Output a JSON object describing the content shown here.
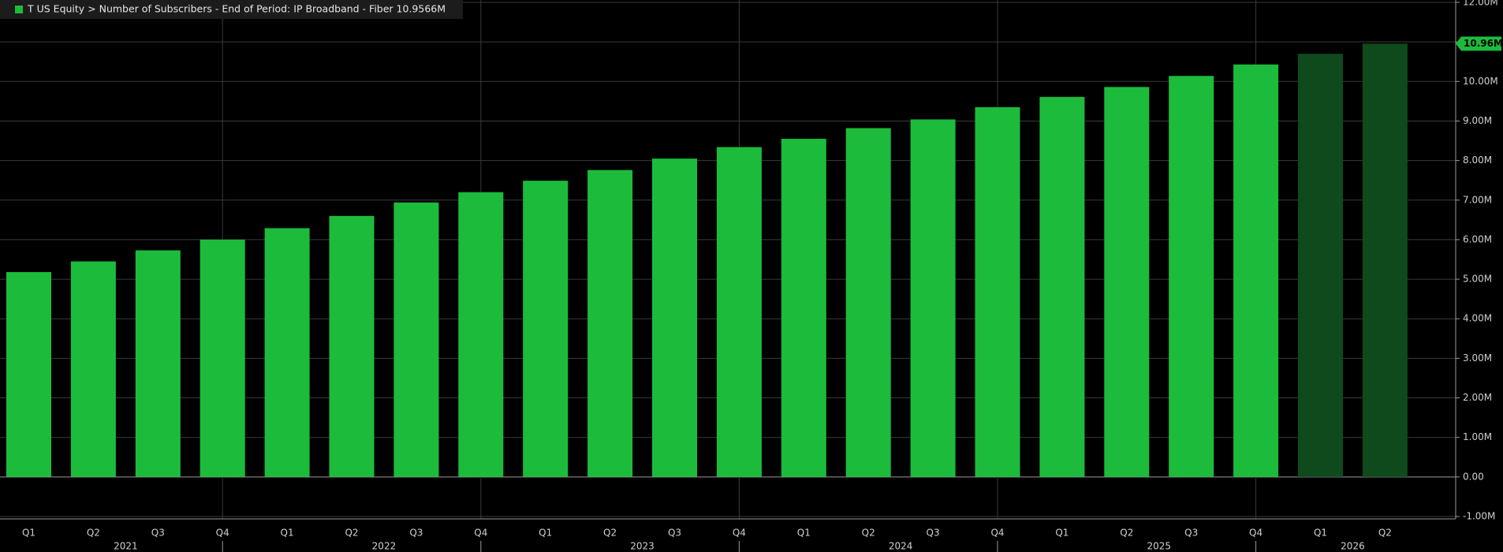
{
  "chart_data": {
    "type": "bar",
    "title": "T US Equity > Number of Subscribers - End of Period: IP Broadband - Fiber 10.9566M",
    "categories": [
      "Q1",
      "Q2",
      "Q3",
      "Q4",
      "Q1",
      "Q2",
      "Q3",
      "Q4",
      "Q1",
      "Q2",
      "Q3",
      "Q4",
      "Q1",
      "Q2",
      "Q3",
      "Q4",
      "Q1",
      "Q2",
      "Q3",
      "Q4",
      "Q1",
      "Q2"
    ],
    "years": [
      "2021",
      "2022",
      "2023",
      "2024",
      "2025",
      "2026"
    ],
    "values": [
      5.18,
      5.45,
      5.73,
      6.0,
      6.29,
      6.6,
      6.94,
      7.2,
      7.49,
      7.76,
      8.05,
      8.34,
      8.55,
      8.82,
      9.04,
      9.35,
      9.61,
      9.86,
      10.14,
      10.43,
      10.7,
      10.9566
    ],
    "value_labels": [
      null,
      null,
      null,
      null,
      null,
      null,
      null,
      null,
      null,
      null,
      null,
      null,
      null,
      null,
      null,
      null,
      null,
      null,
      null,
      null,
      null,
      "10.96M"
    ],
    "colors": [
      "#1dbb3c",
      "#1dbb3c",
      "#1dbb3c",
      "#1dbb3c",
      "#1dbb3c",
      "#1dbb3c",
      "#1dbb3c",
      "#1dbb3c",
      "#1dbb3c",
      "#1dbb3c",
      "#1dbb3c",
      "#1dbb3c",
      "#1dbb3c",
      "#1dbb3c",
      "#1dbb3c",
      "#1dbb3c",
      "#1dbb3c",
      "#1dbb3c",
      "#1dbb3c",
      "#1dbb3c",
      "#0e4a1c",
      "#0e4a1c"
    ],
    "ylim": [
      -1,
      12
    ],
    "yticks": [
      {
        "value": -1,
        "label": "-1.00M"
      },
      {
        "value": 0,
        "label": "0.00"
      },
      {
        "value": 1,
        "label": "1.00M"
      },
      {
        "value": 2,
        "label": "2.00M"
      },
      {
        "value": 3,
        "label": "3.00M"
      },
      {
        "value": 4,
        "label": "4.00M"
      },
      {
        "value": 5,
        "label": "5.00M"
      },
      {
        "value": 6,
        "label": "6.00M"
      },
      {
        "value": 7,
        "label": "7.00M"
      },
      {
        "value": 8,
        "label": "8.00M"
      },
      {
        "value": 9,
        "label": "9.00M"
      },
      {
        "value": 10,
        "label": "10.00M"
      },
      {
        "value": 11,
        "label": "11.00M"
      },
      {
        "value": 12,
        "label": "12.00M"
      }
    ],
    "grid": true
  }
}
